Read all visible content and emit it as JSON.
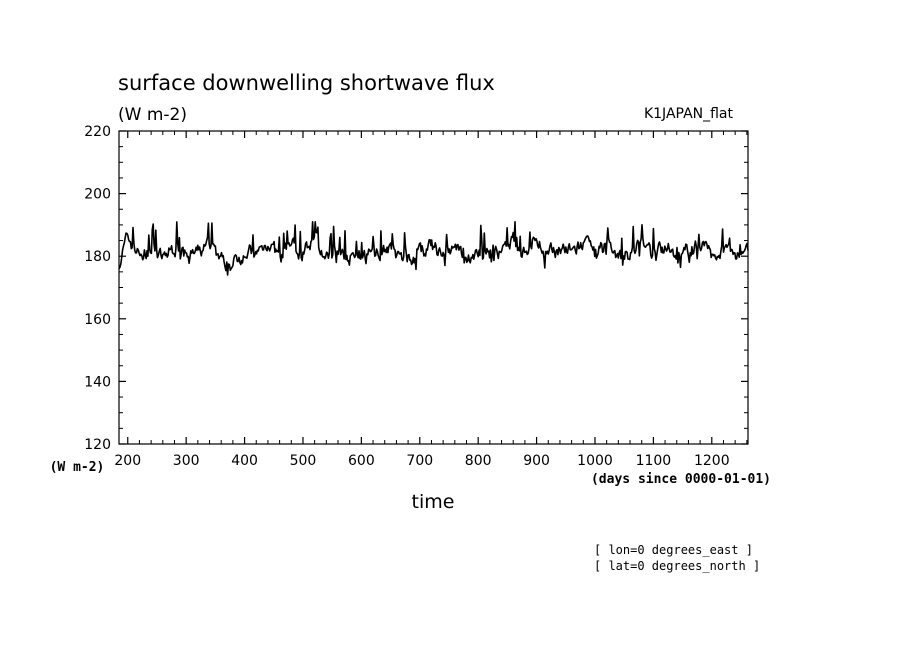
{
  "chart_data": {
    "type": "line",
    "title": "surface downwelling shortwave flux",
    "units": "(W m-2)",
    "dataset": "K1JAPAN_flat",
    "ylabel": "(W m-2)",
    "xlabel": "time",
    "xunits": "(days since 0000-01-01)",
    "ylim": [
      120,
      220
    ],
    "yticks": [
      120,
      140,
      160,
      180,
      200,
      220
    ],
    "xlim": [
      185,
      1262
    ],
    "xticks": [
      200,
      300,
      400,
      500,
      600,
      700,
      800,
      900,
      1000,
      1100,
      1200
    ],
    "grid": false,
    "series": [
      {
        "x": [
          185,
          200,
          220,
          240,
          260,
          280,
          300,
          320,
          340,
          360,
          380,
          400,
          420,
          440,
          460,
          480,
          500,
          520,
          540,
          560,
          580,
          600,
          620,
          640,
          660,
          680,
          700,
          720,
          740,
          760,
          780,
          800,
          820,
          840,
          860,
          880,
          900,
          920,
          940,
          960,
          980,
          1000,
          1020,
          1040,
          1060,
          1080,
          1100,
          1120,
          1140,
          1160,
          1180,
          1200,
          1220,
          1240,
          1262
        ],
        "values": [
          178,
          186,
          180,
          182,
          179,
          183,
          180,
          181,
          184,
          179,
          177,
          182,
          180,
          185,
          179,
          184,
          181,
          186,
          179,
          183,
          180,
          179,
          181,
          183,
          180,
          179,
          181,
          183,
          180,
          182,
          179,
          181,
          183,
          180,
          184,
          182,
          186,
          180,
          183,
          181,
          184,
          180,
          183,
          179,
          181,
          184,
          180,
          183,
          181,
          182,
          184,
          180,
          183,
          181,
          183
        ],
        "min": 174,
        "max": 191
      }
    ]
  },
  "footer": {
    "lon": "[ lon=0 degrees_east ]",
    "lat": "[ lat=0 degrees_north ]"
  }
}
